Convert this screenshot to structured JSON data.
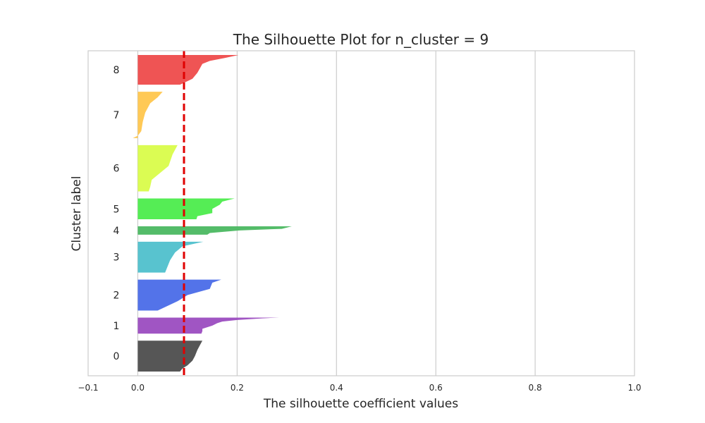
{
  "chart_data": {
    "type": "silhouette",
    "title": "The Silhouette Plot for n_cluster = 9",
    "xlabel": "The silhouette coefficient values",
    "ylabel": "Cluster label",
    "xlim": [
      -0.1,
      1.0
    ],
    "xticks": [
      {
        "value": -0.1,
        "label": "−0.1"
      },
      {
        "value": 0.0,
        "label": "0.0"
      },
      {
        "value": 0.2,
        "label": "0.2"
      },
      {
        "value": 0.4,
        "label": "0.4"
      },
      {
        "value": 0.6,
        "label": "0.6"
      },
      {
        "value": 0.8,
        "label": "0.8"
      },
      {
        "value": 1.0,
        "label": "1.0"
      }
    ],
    "grid": true,
    "average_silhouette": 0.093,
    "average_line_color": "#e00000",
    "clusters": [
      {
        "label": "0",
        "color": "#4d4d4d",
        "size": 52,
        "profile": [
          [
            0.0,
            0.13
          ],
          [
            0.15,
            0.125
          ],
          [
            0.3,
            0.12
          ],
          [
            0.5,
            0.115
          ],
          [
            0.65,
            0.11
          ],
          [
            0.8,
            0.1
          ],
          [
            0.9,
            0.09
          ],
          [
            1.0,
            0.085
          ]
        ]
      },
      {
        "label": "1",
        "color": "#9b4cc0",
        "size": 27,
        "profile": [
          [
            0.0,
            0.285
          ],
          [
            0.05,
            0.25
          ],
          [
            0.15,
            0.2
          ],
          [
            0.25,
            0.17
          ],
          [
            0.35,
            0.16
          ],
          [
            0.5,
            0.15
          ],
          [
            0.7,
            0.13
          ],
          [
            0.85,
            0.13
          ],
          [
            1.0,
            0.128
          ]
        ]
      },
      {
        "label": "2",
        "color": "#4a6be8",
        "size": 52,
        "profile": [
          [
            0.0,
            0.168
          ],
          [
            0.1,
            0.15
          ],
          [
            0.3,
            0.145
          ],
          [
            0.5,
            0.1
          ],
          [
            0.7,
            0.08
          ],
          [
            0.85,
            0.06
          ],
          [
            1.0,
            0.04
          ]
        ]
      },
      {
        "label": "3",
        "color": "#4fc0cc",
        "size": 52,
        "profile": [
          [
            0.0,
            0.132
          ],
          [
            0.15,
            0.09
          ],
          [
            0.35,
            0.075
          ],
          [
            0.6,
            0.065
          ],
          [
            0.8,
            0.06
          ],
          [
            1.0,
            0.055
          ]
        ]
      },
      {
        "label": "4",
        "color": "#4bb861",
        "size": 14,
        "profile": [
          [
            0.0,
            0.31
          ],
          [
            0.3,
            0.29
          ],
          [
            0.5,
            0.205
          ],
          [
            0.8,
            0.145
          ],
          [
            1.0,
            0.14
          ]
        ]
      },
      {
        "label": "5",
        "color": "#4cec4c",
        "size": 35,
        "profile": [
          [
            0.0,
            0.195
          ],
          [
            0.15,
            0.17
          ],
          [
            0.3,
            0.165
          ],
          [
            0.5,
            0.15
          ],
          [
            0.7,
            0.15
          ],
          [
            0.85,
            0.12
          ],
          [
            1.0,
            0.118
          ]
        ]
      },
      {
        "label": "6",
        "color": "#d9fc4a",
        "size": 78,
        "profile": [
          [
            0.0,
            0.08
          ],
          [
            0.2,
            0.07
          ],
          [
            0.45,
            0.062
          ],
          [
            0.6,
            0.045
          ],
          [
            0.75,
            0.028
          ],
          [
            0.9,
            0.025
          ],
          [
            1.0,
            0.022
          ]
        ]
      },
      {
        "label": "7",
        "color": "#ffc64d",
        "size": 78,
        "profile": [
          [
            0.0,
            0.05
          ],
          [
            0.12,
            0.04
          ],
          [
            0.25,
            0.025
          ],
          [
            0.45,
            0.015
          ],
          [
            0.65,
            0.01
          ],
          [
            0.85,
            0.007
          ],
          [
            0.95,
            0.0
          ],
          [
            1.0,
            -0.01
          ]
        ]
      },
      {
        "label": "8",
        "color": "#ee4b4b",
        "size": 50,
        "profile": [
          [
            0.0,
            0.203
          ],
          [
            0.1,
            0.175
          ],
          [
            0.2,
            0.145
          ],
          [
            0.3,
            0.13
          ],
          [
            0.45,
            0.125
          ],
          [
            0.6,
            0.12
          ],
          [
            0.8,
            0.11
          ],
          [
            1.0,
            0.085
          ]
        ]
      }
    ]
  }
}
